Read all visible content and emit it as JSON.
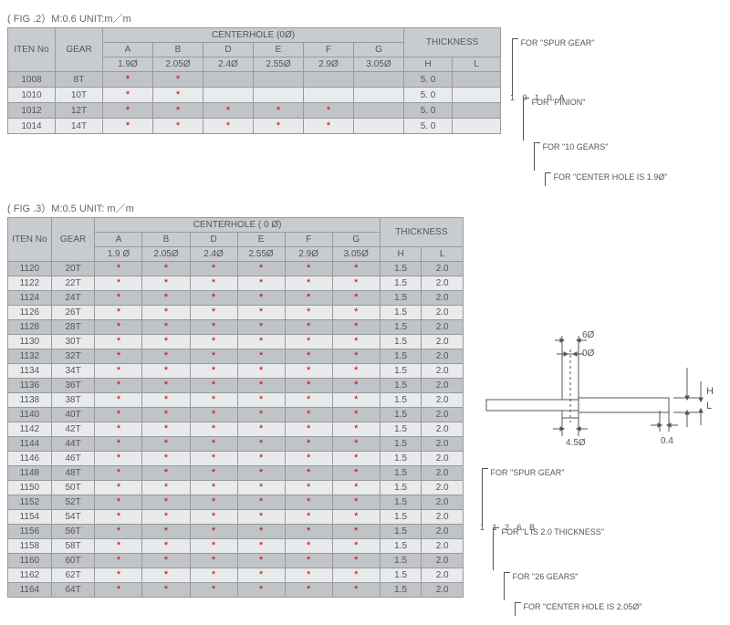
{
  "fig2": {
    "title": "( FIG .2）M:0.6 UNIT:m／m",
    "headers": {
      "iten": "ITEN\nNo",
      "gear": "GEAR",
      "centerhole": "CENTERHOLE (0Ø)",
      "thickness": "THICKNESS",
      "cols": [
        "A",
        "B",
        "D",
        "E",
        "F",
        "G",
        "H",
        "L"
      ],
      "dims": [
        "1.9Ø",
        "2.05Ø",
        "2.4Ø",
        "2.55Ø",
        "2.9Ø",
        "3.05Ø"
      ]
    },
    "rows": [
      {
        "no": "1008",
        "gear": "8T",
        "s": [
          1,
          1,
          0,
          0,
          0,
          0
        ],
        "h": "5. 0",
        "l": ""
      },
      {
        "no": "1010",
        "gear": "10T",
        "s": [
          1,
          1,
          0,
          0,
          0,
          0
        ],
        "h": "5. 0",
        "l": ""
      },
      {
        "no": "1012",
        "gear": "12T",
        "s": [
          1,
          1,
          1,
          1,
          1,
          0
        ],
        "h": "5. 0",
        "l": ""
      },
      {
        "no": "1014",
        "gear": "14T",
        "s": [
          1,
          1,
          1,
          1,
          1,
          0
        ],
        "h": "5. 0",
        "l": ""
      }
    ]
  },
  "fig3": {
    "title": "( FIG .3）M:0.5  UNIT: m／m",
    "headers": {
      "iten": "ITEN\nNo",
      "gear": "GEAR",
      "centerhole": "CENTERHOLE ( 0 Ø)",
      "thickness": "THICKNESS",
      "cols": [
        "A",
        "B",
        "D",
        "E",
        "F",
        "G",
        "H",
        "L"
      ],
      "dims": [
        "1.9 Ø",
        "2.05Ø",
        "2.4Ø",
        "2.55Ø",
        "2.9Ø",
        "3.05Ø"
      ]
    },
    "rows": [
      {
        "no": "1120",
        "gear": "20T",
        "s": [
          1,
          1,
          1,
          1,
          1,
          1
        ],
        "h": "1.5",
        "l": "2.0"
      },
      {
        "no": "1122",
        "gear": "22T",
        "s": [
          1,
          1,
          1,
          1,
          1,
          1
        ],
        "h": "1.5",
        "l": "2.0"
      },
      {
        "no": "1124",
        "gear": "24T",
        "s": [
          1,
          1,
          1,
          1,
          1,
          1
        ],
        "h": "1.5",
        "l": "2.0"
      },
      {
        "no": "1126",
        "gear": "26T",
        "s": [
          1,
          1,
          1,
          1,
          1,
          1
        ],
        "h": "1.5",
        "l": "2.0"
      },
      {
        "no": "1128",
        "gear": "28T",
        "s": [
          1,
          1,
          1,
          1,
          1,
          1
        ],
        "h": "1.5",
        "l": "2.0"
      },
      {
        "no": "1130",
        "gear": "30T",
        "s": [
          1,
          1,
          1,
          1,
          1,
          1
        ],
        "h": "1.5",
        "l": "2.0"
      },
      {
        "no": "1132",
        "gear": "32T",
        "s": [
          1,
          1,
          1,
          1,
          1,
          1
        ],
        "h": "1.5",
        "l": "2.0"
      },
      {
        "no": "1134",
        "gear": "34T",
        "s": [
          1,
          1,
          1,
          1,
          1,
          1
        ],
        "h": "1.5",
        "l": "2.0"
      },
      {
        "no": "1136",
        "gear": "36T",
        "s": [
          1,
          1,
          1,
          1,
          1,
          1
        ],
        "h": "1.5",
        "l": "2.0"
      },
      {
        "no": "1138",
        "gear": "38T",
        "s": [
          1,
          1,
          1,
          1,
          1,
          1
        ],
        "h": "1.5",
        "l": "2.0"
      },
      {
        "no": "1140",
        "gear": "40T",
        "s": [
          1,
          1,
          1,
          1,
          1,
          1
        ],
        "h": "1.5",
        "l": "2.0"
      },
      {
        "no": "1142",
        "gear": "42T",
        "s": [
          1,
          1,
          1,
          1,
          1,
          1
        ],
        "h": "1.5",
        "l": "2.0"
      },
      {
        "no": "1144",
        "gear": "44T",
        "s": [
          1,
          1,
          1,
          1,
          1,
          1
        ],
        "h": "1.5",
        "l": "2.0"
      },
      {
        "no": "1146",
        "gear": "46T",
        "s": [
          1,
          1,
          1,
          1,
          1,
          1
        ],
        "h": "1.5",
        "l": "2.0"
      },
      {
        "no": "1148",
        "gear": "48T",
        "s": [
          1,
          1,
          1,
          1,
          1,
          1
        ],
        "h": "1.5",
        "l": "2.0"
      },
      {
        "no": "1150",
        "gear": "50T",
        "s": [
          1,
          1,
          1,
          1,
          1,
          1
        ],
        "h": "1.5",
        "l": "2.0"
      },
      {
        "no": "1152",
        "gear": "52T",
        "s": [
          1,
          1,
          1,
          1,
          1,
          1
        ],
        "h": "1.5",
        "l": "2.0"
      },
      {
        "no": "1154",
        "gear": "54T",
        "s": [
          1,
          1,
          1,
          1,
          1,
          1
        ],
        "h": "1.5",
        "l": "2.0"
      },
      {
        "no": "1156",
        "gear": "56T",
        "s": [
          1,
          1,
          1,
          1,
          1,
          1
        ],
        "h": "1.5",
        "l": "2.0"
      },
      {
        "no": "1158",
        "gear": "58T",
        "s": [
          1,
          1,
          1,
          1,
          1,
          1
        ],
        "h": "1.5",
        "l": "2.0"
      },
      {
        "no": "1160",
        "gear": "60T",
        "s": [
          1,
          1,
          1,
          1,
          1,
          1
        ],
        "h": "1.5",
        "l": "2.0"
      },
      {
        "no": "1162",
        "gear": "62T",
        "s": [
          1,
          1,
          1,
          1,
          1,
          1
        ],
        "h": "1.5",
        "l": "2.0"
      },
      {
        "no": "1164",
        "gear": "64T",
        "s": [
          1,
          1,
          1,
          1,
          1,
          1
        ],
        "h": "1.5",
        "l": "2.0"
      }
    ]
  },
  "legend1": {
    "l1": "FOR  \"SPUR GEAR\"",
    "l2": "FOR  \"PINION\"",
    "l3": "FOR  \"10 GEARS\"",
    "l4": "FOR  \"CENTER HOLE IS 1.9Ø\"",
    "code": "1 0 1 0 A"
  },
  "legend2": {
    "l1": "FOR  \"SPUR GEAR\"",
    "l2": "FOR  \"L IS  2.0 THICKNESS\"",
    "l3": "FOR  \"26 GEARS\"",
    "l4": "FOR  \"CENTER HOLE  IS 2.05Ø\"",
    "code": "1 1 2 6 B"
  },
  "diagram": {
    "d1": "6Ø",
    "d2": "0Ø",
    "d3": "4.5Ø",
    "d4": "0.4",
    "dL": "L",
    "dH": "H"
  }
}
